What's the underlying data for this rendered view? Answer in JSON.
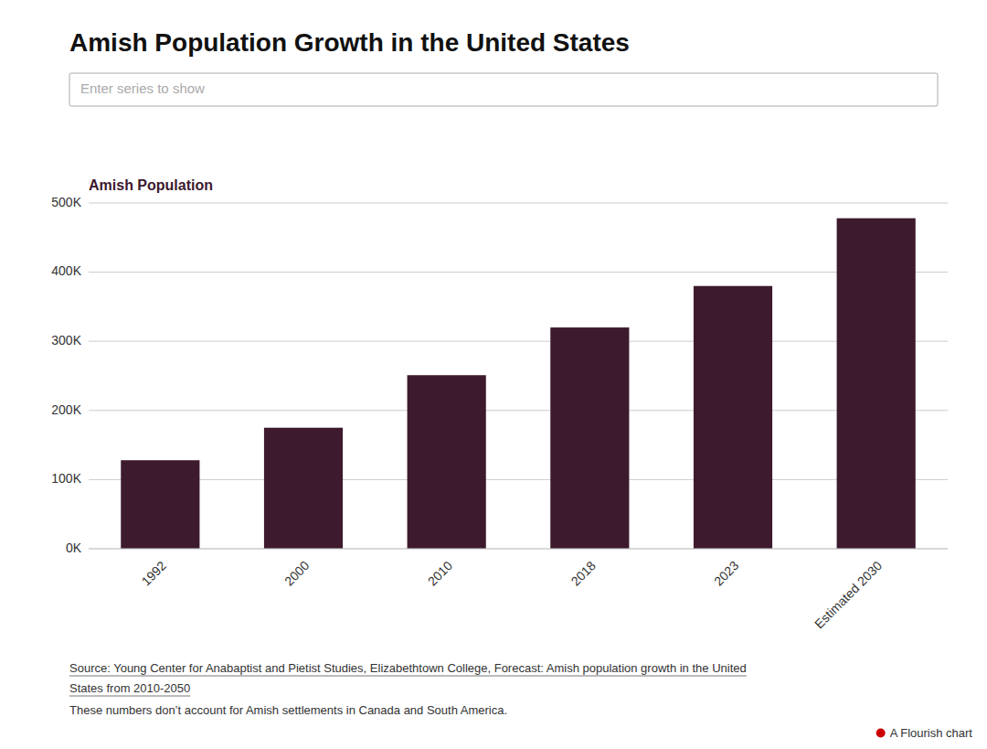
{
  "chart_data": {
    "type": "bar",
    "title": "Amish Population Growth in the United States",
    "categories": [
      "1992",
      "2000",
      "2010",
      "2018",
      "2023",
      "Estimated 2030"
    ],
    "series": [
      {
        "name": "Amish Population",
        "color": "#3d1a2e",
        "values": [
          128000,
          175000,
          251000,
          320000,
          380000,
          478000
        ]
      }
    ],
    "ylim": [
      0,
      500000
    ],
    "yticks": [
      {
        "value": 0,
        "label": "0K"
      },
      {
        "value": 100000,
        "label": "100K"
      },
      {
        "value": 200000,
        "label": "200K"
      },
      {
        "value": 300000,
        "label": "300K"
      },
      {
        "value": 400000,
        "label": "400K"
      },
      {
        "value": 500000,
        "label": "500K"
      }
    ],
    "grid": true,
    "legend": "top",
    "annotations": [
      "Enter series to show",
      "Source: Young Center for Anabaptist and Pietist Studies, Elizabethtown College, Forecast: Amish population growth in the United",
      "States from 2010-2050",
      "These numbers don’t account for Amish settlements in Canada and South America.",
      "A Flourish chart"
    ]
  }
}
